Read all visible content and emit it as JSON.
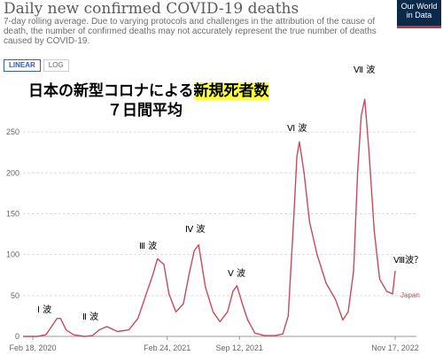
{
  "header": {
    "title": "Daily new confirmed COVID-19 deaths",
    "subtitle": "7-day rolling average. Due to varying protocols and challenges in the attribution of the cause of death, the number of confirmed deaths may not accurately represent the true number of deaths caused by COVID-19.",
    "logo_line1": "Our World",
    "logo_line2": "in Data"
  },
  "controls": {
    "linear_label": "LINEAR",
    "log_label": "LOG",
    "selected": "LINEAR"
  },
  "annotations": {
    "main_prefix": "日本の新型コロナによる",
    "main_highlight": "新規死者数",
    "sub": "７日間平均",
    "waves": [
      "Ⅰ 波",
      "Ⅱ 波",
      "Ⅲ 波",
      "Ⅳ 波",
      "Ⅴ 波",
      "Ⅵ 波",
      "Ⅶ 波",
      "Ⅷ波？"
    ]
  },
  "colors": {
    "series": "#c64a5d",
    "grid": "#dddddd",
    "axis_text": "#666666",
    "highlight": "#ffff35"
  },
  "chart_data": {
    "type": "line",
    "title": "Daily new confirmed COVID-19 deaths",
    "xlabel": "",
    "ylabel": "",
    "ylim": [
      0,
      275
    ],
    "y_ticks": [
      0,
      50,
      100,
      150,
      200,
      250
    ],
    "x_tick_labels": [
      "Feb 18, 2020",
      "Feb 24, 2021",
      "Sep 12, 2021",
      "Nov 17, 2022"
    ],
    "grid": true,
    "series": [
      {
        "name": "Japan",
        "x": [
          "2020-01-22",
          "2020-03-01",
          "2020-03-25",
          "2020-04-10",
          "2020-04-25",
          "2020-05-05",
          "2020-05-20",
          "2020-06-10",
          "2020-07-10",
          "2020-08-01",
          "2020-08-20",
          "2020-09-10",
          "2020-10-10",
          "2020-11-10",
          "2020-12-05",
          "2020-12-25",
          "2021-01-15",
          "2021-01-28",
          "2021-02-15",
          "2021-03-01",
          "2021-03-20",
          "2021-04-10",
          "2021-04-25",
          "2021-05-10",
          "2021-05-22",
          "2021-06-10",
          "2021-07-01",
          "2021-07-20",
          "2021-08-10",
          "2021-08-25",
          "2021-09-05",
          "2021-09-20",
          "2021-10-05",
          "2021-10-25",
          "2021-11-20",
          "2021-12-20",
          "2022-01-10",
          "2022-01-25",
          "2022-02-10",
          "2022-02-18",
          "2022-02-25",
          "2022-03-10",
          "2022-03-25",
          "2022-04-15",
          "2022-05-10",
          "2022-06-05",
          "2022-06-25",
          "2022-07-10",
          "2022-07-25",
          "2022-08-05",
          "2022-08-15",
          "2022-08-25",
          "2022-09-05",
          "2022-09-20",
          "2022-10-05",
          "2022-10-25",
          "2022-11-10",
          "2022-11-17"
        ],
        "values": [
          0,
          0,
          2,
          12,
          22,
          22,
          8,
          2,
          0,
          1,
          8,
          12,
          6,
          8,
          22,
          48,
          75,
          95,
          88,
          52,
          30,
          40,
          75,
          105,
          112,
          60,
          30,
          18,
          30,
          55,
          62,
          40,
          20,
          4,
          1,
          1,
          3,
          25,
          150,
          220,
          238,
          200,
          140,
          100,
          65,
          45,
          20,
          30,
          80,
          200,
          270,
          290,
          230,
          130,
          70,
          55,
          52,
          80
        ]
      }
    ]
  }
}
